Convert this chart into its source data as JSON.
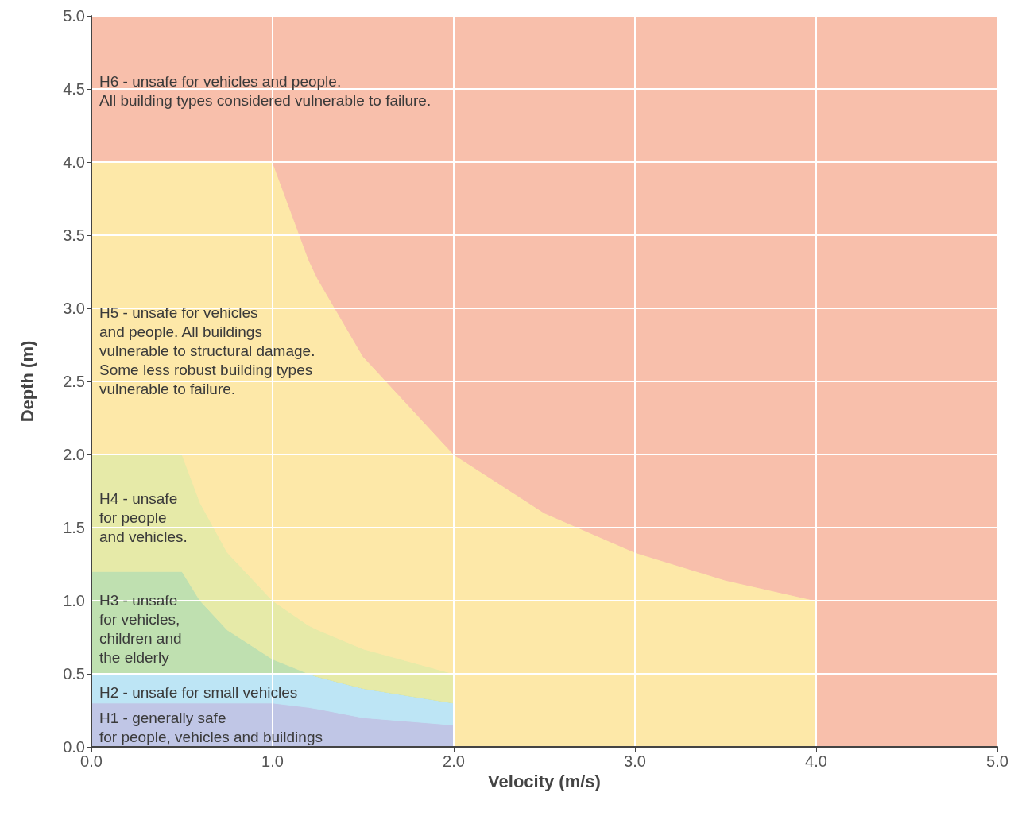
{
  "chart_data": {
    "type": "area",
    "xlabel": "Velocity (m/s)",
    "ylabel": "Depth (m)",
    "xlim": [
      0,
      5
    ],
    "ylim": [
      0,
      5
    ],
    "xticks": [
      {
        "value": 0,
        "label": "0.0"
      },
      {
        "value": 1,
        "label": "1.0"
      },
      {
        "value": 2,
        "label": "2.0"
      },
      {
        "value": 3,
        "label": "3.0"
      },
      {
        "value": 4,
        "label": "4.0"
      },
      {
        "value": 5,
        "label": "5.0"
      }
    ],
    "yticks": [
      {
        "value": 0,
        "label": "0.0"
      },
      {
        "value": 0.5,
        "label": "0.5"
      },
      {
        "value": 1,
        "label": "1.0"
      },
      {
        "value": 1.5,
        "label": "1.5"
      },
      {
        "value": 2,
        "label": "2.0"
      },
      {
        "value": 2.5,
        "label": "2.5"
      },
      {
        "value": 3,
        "label": "3.0"
      },
      {
        "value": 3.5,
        "label": "3.5"
      },
      {
        "value": 4,
        "label": "4.0"
      },
      {
        "value": 4.5,
        "label": "4.5"
      },
      {
        "value": 5,
        "label": "5.0"
      }
    ],
    "grid": true,
    "stacked": true,
    "x": [
      0,
      0.5,
      0.6,
      0.75,
      1,
      1.2,
      1.25,
      1.5,
      2,
      2,
      2.5,
      3,
      3.5,
      4,
      4,
      5
    ],
    "series": [
      {
        "color": "#c0c6e6",
        "values": [
          0.3,
          0.3,
          0.3,
          0.3,
          0.3,
          0.27,
          0.26,
          0.2,
          0.15,
          0,
          0,
          0,
          0,
          0,
          0,
          0
        ]
      },
      {
        "color": "#bde5f5",
        "values": [
          0.2,
          0.2,
          0.2,
          0.2,
          0.2,
          0.23,
          0.22,
          0.2,
          0.15,
          0,
          0,
          0,
          0,
          0,
          0,
          0
        ]
      },
      {
        "color": "#bfe0b0",
        "values": [
          0.7,
          0.7,
          0.5,
          0.3,
          0.1,
          0,
          0,
          0,
          0,
          0,
          0,
          0,
          0,
          0,
          0,
          0
        ]
      },
      {
        "color": "#e6eaa8",
        "values": [
          0.8,
          0.8,
          0.67,
          0.53,
          0.4,
          0.33,
          0.32,
          0.27,
          0.2,
          0,
          0,
          0,
          0,
          0,
          0,
          0
        ]
      },
      {
        "color": "#fde8a8",
        "values": [
          2,
          2,
          2.33,
          2.67,
          3,
          2.5,
          2.4,
          2,
          1.5,
          2,
          1.6,
          1.33,
          1.14,
          1,
          0,
          0
        ]
      },
      {
        "color": "#f8bfab",
        "values": [
          1,
          1,
          1,
          1,
          1,
          1.67,
          1.8,
          2.33,
          3,
          3,
          3.4,
          3.67,
          3.86,
          4,
          5,
          5
        ]
      }
    ],
    "annotations": [
      "H1 - generally safe\nfor people, vehicles and buildings",
      "H2 - unsafe for small vehicles",
      "H3 - unsafe\nfor vehicles,\nchildren and\nthe elderly",
      "H4 - unsafe\nfor people\nand vehicles.",
      "H5 - unsafe for vehicles\nand people. All buildings\nvulnerable to structural damage.\nSome less robust building types\nvulnerable to failure.",
      "H6 - unsafe for vehicles and people.\nAll building types considered vulnerable to failure."
    ]
  }
}
